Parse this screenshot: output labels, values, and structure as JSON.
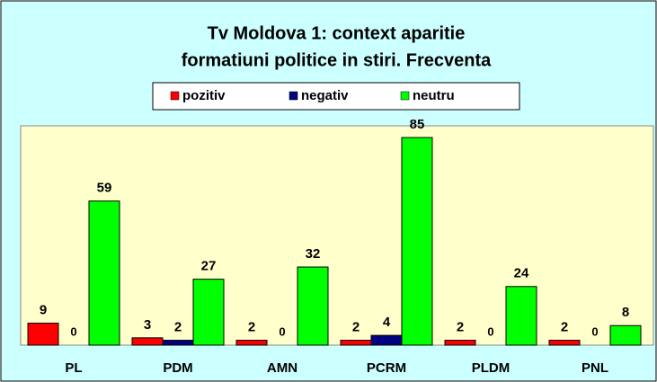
{
  "chart_data": {
    "type": "bar",
    "title": [
      "Tv Moldova 1: context aparitie",
      "formatiuni politice in stiri. Frecventa"
    ],
    "categories": [
      "PL",
      "PDM",
      "AMN",
      "PCRM",
      "PLDM",
      "PNL"
    ],
    "series": [
      {
        "name": "pozitiv",
        "color": "#ff0000",
        "values": [
          9,
          3,
          2,
          2,
          2,
          2
        ]
      },
      {
        "name": "negativ",
        "color": "#000080",
        "values": [
          0,
          2,
          0,
          4,
          0,
          0
        ]
      },
      {
        "name": "neutru",
        "color": "#00ff00",
        "values": [
          59,
          27,
          32,
          85,
          24,
          8
        ]
      }
    ]
  }
}
